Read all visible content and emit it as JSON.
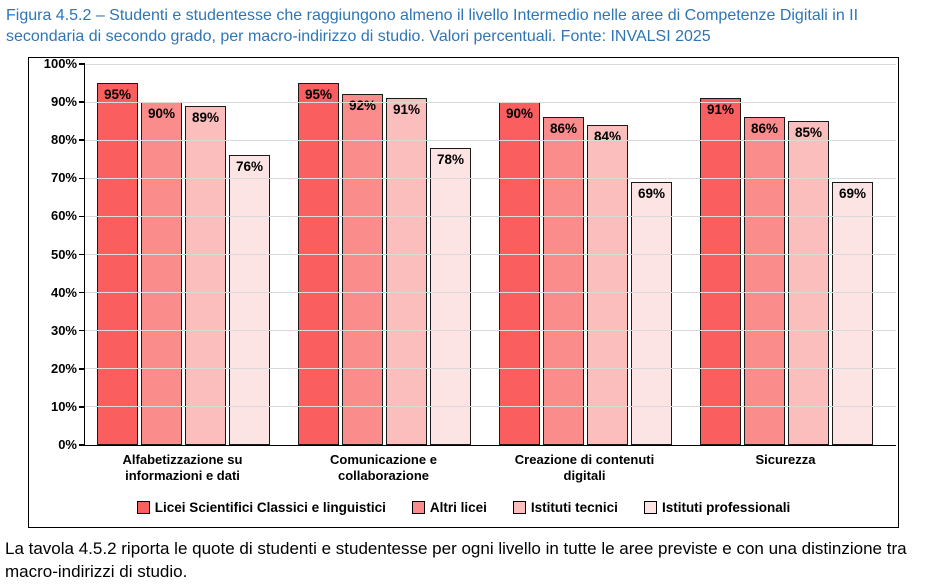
{
  "caption": "Figura 4.5.2 – Studenti e studentesse che raggiungono almeno il livello Intermedio nelle aree di Competenze Digitali in II secondaria di secondo grado, per macro-indirizzo di studio. Valori percentuali. Fonte: INVALSI 2025",
  "footer": "La tavola 4.5.2 riporta le quote di studenti e studentesse per ogni livello in tutte le aree previste e con una distinzione tra macro-indirizzi di studio.",
  "colors": {
    "caption_text": "#2E75B6",
    "gridline": "#D9D9D9",
    "bar_border": "#1A1A1A",
    "axis": "#000000"
  },
  "chart_data": {
    "type": "bar",
    "title": "Figura 4.5.2 – Studenti e studentesse che raggiungono almeno il livello Intermedio nelle aree di Competenze Digitali in II secondaria di secondo grado, per macro-indirizzo di studio. Valori percentuali. Fonte: INVALSI 2025",
    "categories": [
      "Alfabetizzazione su informazioni e dati",
      "Comunicazione e collaborazione",
      "Creazione di contenuti digitali",
      "Sicurezza"
    ],
    "series": [
      {
        "name": "Licei Scientifici Classici e linguistici",
        "color": "#FA5E5E",
        "values": [
          95,
          95,
          90,
          91
        ]
      },
      {
        "name": "Altri licei",
        "color": "#FB8C8C",
        "values": [
          90,
          92,
          86,
          86
        ]
      },
      {
        "name": "Istituti tecnici",
        "color": "#FCBDBD",
        "values": [
          89,
          91,
          84,
          85
        ]
      },
      {
        "name": "Istituti professionali",
        "color": "#FDE4E4",
        "values": [
          76,
          78,
          69,
          69
        ]
      }
    ],
    "value_suffix": "%",
    "xlabel": "",
    "ylabel": "",
    "ylim": [
      0,
      100
    ],
    "yticks": [
      "0%",
      "10%",
      "20%",
      "30%",
      "40%",
      "50%",
      "60%",
      "70%",
      "80%",
      "90%",
      "100%"
    ],
    "grid": true,
    "legend_position": "bottom"
  }
}
